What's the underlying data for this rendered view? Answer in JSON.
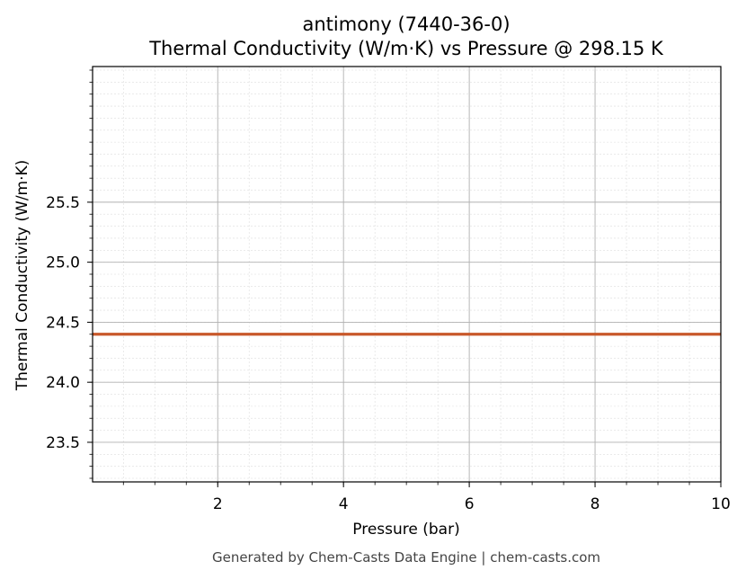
{
  "chart_data": {
    "type": "line",
    "title": "antimony (7440-36-0)",
    "subtitle": "Thermal Conductivity (W/m·K) vs Pressure @ 298.15 K",
    "xlabel": "Pressure (bar)",
    "ylabel": "Thermal Conductivity (W/m·K)",
    "xlim": [
      0.01,
      10
    ],
    "ylim": [
      23.17,
      26.63
    ],
    "x_ticks": [
      2,
      4,
      6,
      8,
      10
    ],
    "x_tick_labels": [
      "2",
      "4",
      "6",
      "8",
      "10"
    ],
    "x_minor_step": 0.5,
    "y_ticks": [
      23.5,
      24.0,
      24.5,
      25.0,
      25.5
    ],
    "y_tick_labels": [
      "23.5",
      "24.0",
      "24.5",
      "25.0",
      "25.5"
    ],
    "y_minor_step": 0.1,
    "grid": true,
    "legend": "none",
    "series": [
      {
        "x": [
          0.01,
          1,
          2,
          3,
          4,
          5,
          6,
          7,
          8,
          9,
          10
        ],
        "y": [
          24.4,
          24.4,
          24.4,
          24.4,
          24.4,
          24.4,
          24.4,
          24.4,
          24.4,
          24.4,
          24.4
        ],
        "color": "#c8582a"
      }
    ],
    "colors": {
      "major_grid": "#b0b0b0",
      "minor_grid": "#dddddd",
      "axes": "#000000"
    }
  },
  "footer": "Generated by Chem-Casts Data Engine | chem-casts.com"
}
